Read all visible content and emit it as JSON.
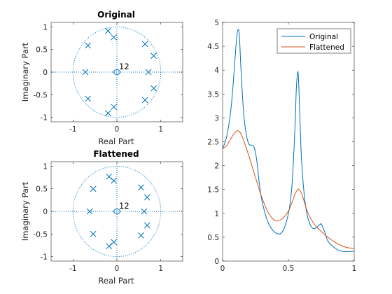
{
  "colors": {
    "pz": "#0072BD",
    "orig": "#0072BD",
    "flat": "#D95319",
    "axis": "#262626"
  },
  "chart_data": [
    {
      "type": "scatter",
      "title": "Original",
      "xlabel": "Real Part",
      "ylabel": "Imaginary Part",
      "xlim": [
        -1.5,
        1.5
      ],
      "ylim": [
        -1.1,
        1.1
      ],
      "xticks": [
        -1,
        0,
        1
      ],
      "yticks": [
        -1,
        -0.5,
        0,
        0.5,
        1
      ],
      "yticklabels": [
        "-1",
        "-0.5",
        "0",
        "0.5",
        "1"
      ],
      "unit_circle": true,
      "axes_through_origin": true,
      "zeros": [
        [
          0,
          0
        ]
      ],
      "zero_multiplicity_label": "12",
      "poles": [
        [
          -0.2,
          0.91
        ],
        [
          -0.2,
          -0.91
        ],
        [
          -0.07,
          0.77
        ],
        [
          -0.07,
          -0.77
        ],
        [
          0.64,
          0.62
        ],
        [
          0.64,
          -0.62
        ],
        [
          0.84,
          0.36
        ],
        [
          0.84,
          -0.36
        ],
        [
          0.72,
          0.0
        ],
        [
          -0.66,
          0.59
        ],
        [
          -0.66,
          -0.59
        ],
        [
          -0.72,
          0.0
        ]
      ]
    },
    {
      "type": "scatter",
      "title": "Flattened",
      "xlabel": "Real Part",
      "ylabel": "Imaginary Part",
      "xlim": [
        -1.5,
        1.5
      ],
      "ylim": [
        -1.1,
        1.1
      ],
      "xticks": [
        -1,
        0,
        1
      ],
      "yticks": [
        -1,
        -0.5,
        0,
        0.5,
        1
      ],
      "yticklabels": [
        "-1",
        "-0.5",
        "0",
        "0.5",
        "1"
      ],
      "unit_circle": true,
      "axes_through_origin": true,
      "zeros": [
        [
          0,
          0
        ]
      ],
      "zero_multiplicity_label": "12",
      "poles": [
        [
          -0.18,
          0.77
        ],
        [
          -0.18,
          -0.77
        ],
        [
          -0.07,
          0.68
        ],
        [
          -0.07,
          -0.68
        ],
        [
          0.55,
          0.53
        ],
        [
          0.55,
          -0.53
        ],
        [
          0.69,
          0.31
        ],
        [
          0.69,
          -0.31
        ],
        [
          0.62,
          0.0
        ],
        [
          -0.54,
          0.5
        ],
        [
          -0.54,
          -0.5
        ],
        [
          -0.62,
          0.0
        ]
      ]
    },
    {
      "type": "line",
      "xlim": [
        0,
        1
      ],
      "ylim": [
        0,
        5
      ],
      "xticks": [
        0,
        0.5,
        1
      ],
      "xticklabels": [
        "0",
        "0.5",
        "1"
      ],
      "yticks": [
        0,
        0.5,
        1,
        1.5,
        2,
        2.5,
        3,
        3.5,
        4,
        4.5,
        5
      ],
      "yticklabels": [
        "0",
        "0.5",
        "1",
        "1.5",
        "2",
        "2.5",
        "3",
        "3.5",
        "4",
        "4.5",
        "5"
      ],
      "legend_position": "top-right",
      "series": [
        {
          "name": "Original",
          "x": [
            0,
            0.03,
            0.06,
            0.08,
            0.1,
            0.11,
            0.115,
            0.12,
            0.125,
            0.13,
            0.14,
            0.16,
            0.18,
            0.2,
            0.22,
            0.24,
            0.26,
            0.28,
            0.3,
            0.34,
            0.38,
            0.42,
            0.45,
            0.48,
            0.51,
            0.53,
            0.55,
            0.56,
            0.57,
            0.575,
            0.58,
            0.59,
            0.6,
            0.62,
            0.64,
            0.66,
            0.68,
            0.7,
            0.72,
            0.74,
            0.75,
            0.76,
            0.78,
            0.8,
            0.84,
            0.88,
            0.92,
            0.96,
            1
          ],
          "y": [
            2.35,
            2.6,
            3.1,
            3.7,
            4.45,
            4.75,
            4.83,
            4.85,
            4.8,
            4.6,
            4.0,
            3.1,
            2.65,
            2.45,
            2.43,
            2.38,
            2.1,
            1.6,
            1.25,
            0.85,
            0.65,
            0.57,
            0.6,
            0.78,
            1.15,
            1.7,
            2.8,
            3.6,
            3.95,
            3.9,
            3.6,
            2.8,
            2.1,
            1.4,
            1.0,
            0.8,
            0.7,
            0.68,
            0.72,
            0.77,
            0.78,
            0.72,
            0.58,
            0.42,
            0.3,
            0.23,
            0.2,
            0.2,
            0.21
          ]
        },
        {
          "name": "Flattened",
          "x": [
            0,
            0.03,
            0.06,
            0.09,
            0.12,
            0.15,
            0.2,
            0.25,
            0.3,
            0.35,
            0.4,
            0.45,
            0.5,
            0.53,
            0.55,
            0.57,
            0.58,
            0.6,
            0.62,
            0.65,
            0.7,
            0.75,
            0.8,
            0.85,
            0.9,
            0.95,
            1
          ],
          "y": [
            2.35,
            2.42,
            2.55,
            2.68,
            2.73,
            2.6,
            2.2,
            1.75,
            1.32,
            1.0,
            0.85,
            0.88,
            1.05,
            1.25,
            1.4,
            1.5,
            1.5,
            1.42,
            1.25,
            1.0,
            0.76,
            0.62,
            0.5,
            0.4,
            0.33,
            0.28,
            0.27
          ]
        }
      ]
    }
  ]
}
